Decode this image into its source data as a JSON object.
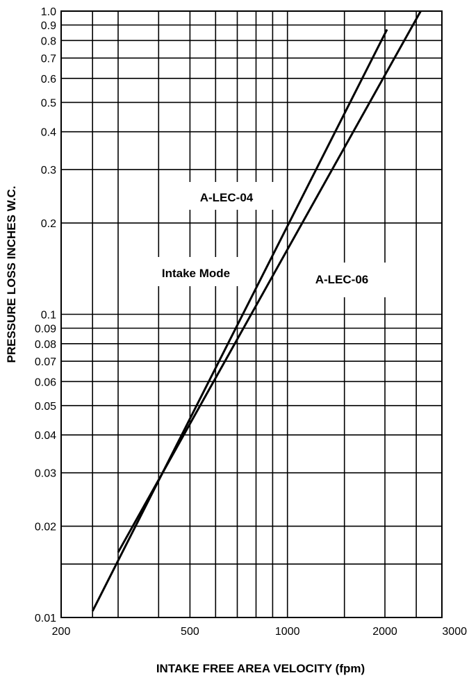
{
  "chart_data": {
    "type": "line",
    "title": "",
    "xlabel": "INTAKE FREE AREA VELOCITY (fpm)",
    "ylabel": "PRESSURE LOSS INCHES  W.C.",
    "xscale": "log",
    "yscale": "log",
    "xlim": [
      200,
      3000
    ],
    "ylim": [
      0.01,
      1.0
    ],
    "grid": true,
    "x_ticks": [
      200,
      500,
      1000,
      2000,
      3000
    ],
    "x_tick_labels": [
      "200",
      "500",
      "1000",
      "2000",
      "3000"
    ],
    "x_gridlines": [
      200,
      250,
      300,
      400,
      500,
      600,
      700,
      800,
      900,
      1000,
      1500,
      2000,
      2500,
      3000
    ],
    "y_ticks": [
      0.01,
      0.02,
      0.03,
      0.04,
      0.05,
      0.06,
      0.07,
      0.08,
      0.09,
      0.1,
      0.2,
      0.3,
      0.4,
      0.5,
      0.6,
      0.7,
      0.8,
      0.9,
      1.0
    ],
    "y_tick_labels": [
      "0.01",
      "0.02",
      "0.03",
      "0.04",
      "0.05",
      "0.06",
      "0.07",
      "0.08",
      "0.09",
      "0.1",
      "0.2",
      "0.3",
      "0.4",
      "0.5",
      "0.6",
      "0.7",
      "0.8",
      "0.9",
      "1.0"
    ],
    "y_gridlines": [
      0.01,
      0.015,
      0.02,
      0.03,
      0.04,
      0.05,
      0.06,
      0.07,
      0.08,
      0.09,
      0.1,
      0.2,
      0.3,
      0.4,
      0.5,
      0.6,
      0.7,
      0.8,
      0.9,
      1.0
    ],
    "series": [
      {
        "name": "A-LEC-04",
        "x": [
          250,
          2030
        ],
        "y": [
          0.0105,
          0.87
        ]
      },
      {
        "name": "A-LEC-06",
        "x": [
          300,
          2580
        ],
        "y": [
          0.0164,
          1.0
        ]
      }
    ],
    "annotations": [
      {
        "text": "Intake Mode"
      }
    ]
  }
}
